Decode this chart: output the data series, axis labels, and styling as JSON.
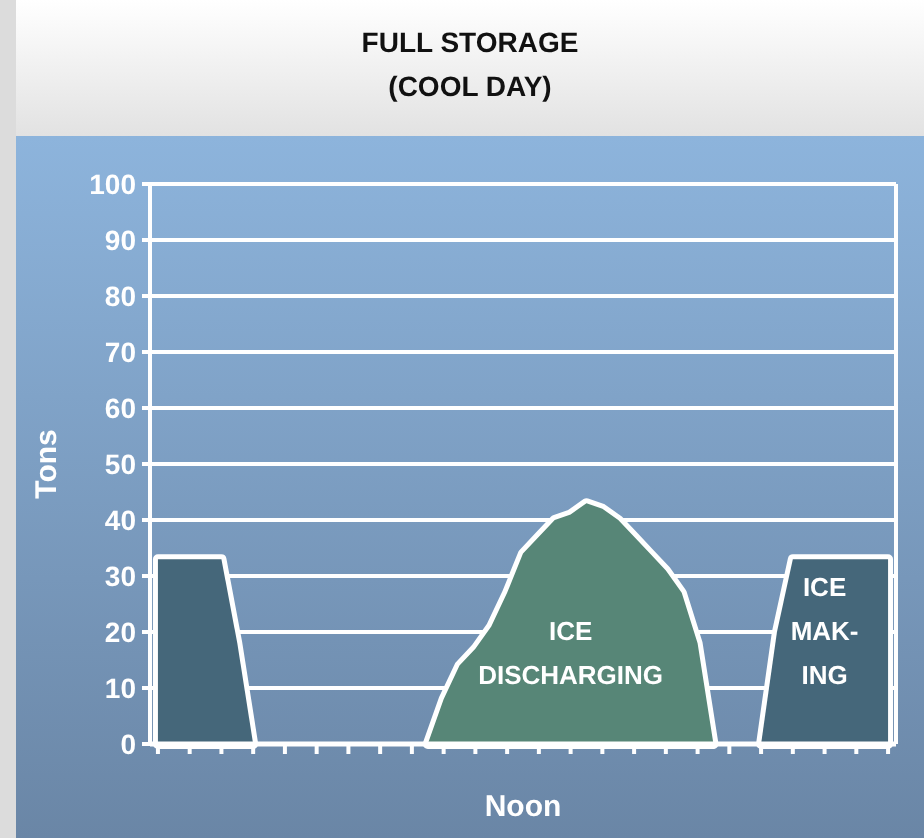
{
  "chart_data": {
    "type": "area",
    "title": "FULL STORAGE\n(COOL DAY)",
    "xlabel": "Noon",
    "ylabel": "Tons",
    "categories": [
      null,
      null,
      null,
      null,
      null,
      null,
      null,
      null,
      null,
      null,
      null,
      null,
      null,
      null,
      null,
      null,
      null,
      null,
      null,
      null,
      null,
      null,
      null,
      null,
      null,
      null,
      null,
      null,
      null,
      null,
      null,
      null,
      null,
      null,
      null,
      null,
      null,
      null,
      null,
      null,
      null,
      null,
      null,
      null,
      null,
      null,
      null
    ],
    "ylim": [
      0,
      100
    ],
    "yticks": [
      0,
      10,
      20,
      30,
      40,
      50,
      60,
      70,
      80,
      90,
      100
    ],
    "grid": "y",
    "tick_labels": "y",
    "series": [
      {
        "color": "#45677a",
        "values": [
          33,
          33,
          33,
          33,
          33,
          18,
          0,
          null,
          null,
          null,
          null,
          null,
          null,
          null,
          null,
          null,
          null,
          null,
          null,
          null,
          null,
          null,
          null,
          null,
          null,
          null,
          null,
          null,
          null,
          null,
          null,
          null,
          null,
          null,
          null,
          null,
          null,
          null,
          null,
          null,
          null,
          null,
          null,
          null,
          null,
          null,
          null
        ]
      },
      {
        "color": "#578677",
        "values": [
          null,
          null,
          null,
          null,
          null,
          null,
          null,
          null,
          null,
          null,
          null,
          null,
          null,
          null,
          null,
          null,
          null,
          0,
          8,
          14,
          17,
          21,
          27,
          34,
          37,
          40,
          41,
          43,
          42,
          40,
          37,
          34,
          31,
          27,
          18,
          0,
          null,
          null,
          null,
          null,
          null,
          null,
          null,
          null,
          null,
          null,
          null
        ]
      },
      {
        "color": "#45677a",
        "values": [
          null,
          null,
          null,
          null,
          null,
          null,
          null,
          null,
          null,
          null,
          null,
          null,
          null,
          null,
          null,
          null,
          null,
          null,
          null,
          null,
          null,
          null,
          null,
          null,
          null,
          null,
          null,
          null,
          null,
          null,
          null,
          null,
          null,
          null,
          null,
          null,
          null,
          null,
          0,
          20,
          33,
          33,
          33,
          33,
          33,
          33,
          33
        ]
      }
    ],
    "annotations": [
      "ICE\nDISCHARGING",
      "ICE\nMAK-\nING"
    ]
  }
}
